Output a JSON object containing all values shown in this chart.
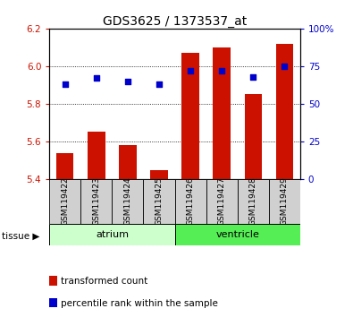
{
  "title": "GDS3625 / 1373537_at",
  "samples": [
    "GSM119422",
    "GSM119423",
    "GSM119424",
    "GSM119425",
    "GSM119426",
    "GSM119427",
    "GSM119428",
    "GSM119429"
  ],
  "red_values": [
    5.54,
    5.65,
    5.58,
    5.45,
    6.07,
    6.1,
    5.85,
    6.12
  ],
  "blue_percentiles": [
    63,
    67,
    65,
    63,
    72,
    72,
    68,
    75
  ],
  "bar_bottom": 5.4,
  "ylim_left": [
    5.4,
    6.2
  ],
  "ylim_right": [
    0,
    100
  ],
  "yticks_left": [
    5.4,
    5.6,
    5.8,
    6.0,
    6.2
  ],
  "yticks_right": [
    0,
    25,
    50,
    75,
    100
  ],
  "tissue_groups": [
    {
      "label": "atrium",
      "start": 0,
      "end": 4,
      "color": "#ccffcc"
    },
    {
      "label": "ventricle",
      "start": 4,
      "end": 8,
      "color": "#55ee55"
    }
  ],
  "tissue_label": "tissue",
  "bar_color": "#cc1100",
  "dot_color": "#0000cc",
  "legend_items": [
    "transformed count",
    "percentile rank within the sample"
  ],
  "title_fontsize": 10,
  "tick_fontsize": 7.5,
  "label_fontsize": 6.5,
  "legend_fontsize": 7.5
}
